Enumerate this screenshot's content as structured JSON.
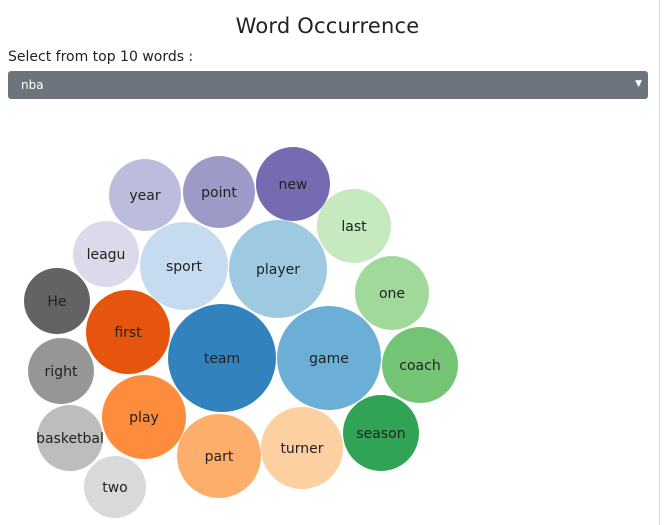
{
  "page": {
    "title": "Word Occurrence"
  },
  "selector": {
    "label": "Select from top 10 words :",
    "value": "nba"
  },
  "colors": {
    "select_bg": "#6c757d",
    "label_fill": "#222222"
  },
  "bubbles": [
    {
      "word": "year",
      "color": "#bcbddc"
    },
    {
      "word": "point",
      "color": "#9e9ac8"
    },
    {
      "word": "new",
      "color": "#756bb1"
    },
    {
      "word": "last",
      "color": "#c7e9c0"
    },
    {
      "word": "leagu",
      "color": "#dadaeb"
    },
    {
      "word": "sport",
      "color": "#c6dbef"
    },
    {
      "word": "player",
      "color": "#9ecae1"
    },
    {
      "word": "one",
      "color": "#a1d99b"
    },
    {
      "word": "He",
      "color": "#636363"
    },
    {
      "word": "first",
      "color": "#e6550d"
    },
    {
      "word": "team",
      "color": "#3182bd"
    },
    {
      "word": "game",
      "color": "#6baed6"
    },
    {
      "word": "coach",
      "color": "#74c476"
    },
    {
      "word": "right",
      "color": "#969696"
    },
    {
      "word": "play",
      "color": "#fd8d3c"
    },
    {
      "word": "season",
      "color": "#31a354"
    },
    {
      "word": "basketbal",
      "color": "#bdbdbd"
    },
    {
      "word": "part",
      "color": "#fdae6b"
    },
    {
      "word": "turner",
      "color": "#fdd0a2"
    },
    {
      "word": "two",
      "color": "#d9d9d9"
    }
  ]
}
